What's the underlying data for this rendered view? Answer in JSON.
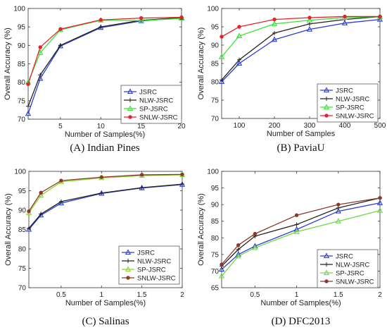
{
  "chart_data": [
    {
      "type": "line",
      "caption": "(A) Indian Pines",
      "xlabel": "Number of Samples(%)",
      "ylabel": "Overall Accuracy (%)",
      "xlim": [
        1,
        20
      ],
      "ylim": [
        70,
        100
      ],
      "xticks": [
        5,
        10,
        15,
        20
      ],
      "yticks": [
        70,
        75,
        80,
        85,
        90,
        95,
        100
      ],
      "x": [
        1,
        2.5,
        5,
        10,
        15,
        20
      ],
      "legend_position": "middle-right",
      "series": [
        {
          "name": "JSRC",
          "color": "#2b3fd4",
          "marker": "triangle",
          "values": [
            71.5,
            81.0,
            89.8,
            94.8,
            96.6,
            97.5
          ]
        },
        {
          "name": "NLW-JSRC",
          "color": "#222222",
          "marker": "plus",
          "values": [
            73.5,
            82.0,
            90.0,
            95.0,
            96.8,
            97.5
          ]
        },
        {
          "name": "SP-JSRC",
          "color": "#33e633",
          "marker": "triangle",
          "values": [
            80.0,
            88.0,
            94.2,
            96.8,
            96.7,
            97.3
          ]
        },
        {
          "name": "SNLW-JSRC",
          "color": "#e8202a",
          "marker": "dot",
          "values": [
            79.5,
            89.5,
            94.4,
            96.9,
            97.4,
            97.6
          ]
        }
      ]
    },
    {
      "type": "line",
      "caption": "(B) PaviaU",
      "xlabel": "Number of Samples",
      "ylabel": "Overall Accuracy (%)",
      "xlim": [
        50,
        500
      ],
      "ylim": [
        70,
        100
      ],
      "xticks": [
        100,
        200,
        300,
        400,
        500
      ],
      "yticks": [
        70,
        75,
        80,
        85,
        90,
        95,
        100
      ],
      "x": [
        50,
        100,
        200,
        300,
        400,
        500
      ],
      "legend_position": "bottom-right",
      "series": [
        {
          "name": "JSRC",
          "color": "#2b3fd4",
          "marker": "triangle",
          "values": [
            80.0,
            85.0,
            91.5,
            94.3,
            96.0,
            97.0
          ]
        },
        {
          "name": "NLW-JSRC",
          "color": "#222222",
          "marker": "plus",
          "values": [
            80.5,
            86.0,
            93.3,
            95.8,
            97.0,
            97.8
          ]
        },
        {
          "name": "SP-JSRC",
          "color": "#33e633",
          "marker": "triangle",
          "values": [
            86.8,
            92.5,
            95.8,
            96.8,
            97.5,
            97.8
          ]
        },
        {
          "name": "SNLW-JSRC",
          "color": "#e8202a",
          "marker": "dot",
          "values": [
            92.3,
            95.0,
            97.0,
            97.5,
            97.8,
            97.8
          ]
        }
      ]
    },
    {
      "type": "line",
      "caption": "(C) Salinas",
      "xlabel": "Number of Samples(%)",
      "ylabel": "Overall Accuracy (%)",
      "xlim": [
        0.1,
        2
      ],
      "ylim": [
        70,
        100
      ],
      "xticks": [
        0.5,
        1,
        1.5,
        2
      ],
      "yticks": [
        70,
        75,
        80,
        85,
        90,
        95,
        100
      ],
      "x": [
        0.1,
        0.25,
        0.5,
        1,
        1.5,
        2
      ],
      "legend_position": "bottom-right",
      "series": [
        {
          "name": "JSRC",
          "color": "#2b3fd4",
          "marker": "triangle",
          "values": [
            85.0,
            88.7,
            91.8,
            94.3,
            95.7,
            96.6
          ]
        },
        {
          "name": "NLW-JSRC",
          "color": "#222222",
          "marker": "plus",
          "values": [
            85.3,
            89.0,
            92.2,
            94.4,
            95.8,
            96.7
          ]
        },
        {
          "name": "SP-JSRC",
          "color": "#8ad62a",
          "marker": "triangle",
          "values": [
            89.3,
            93.8,
            97.3,
            98.3,
            98.9,
            99.1
          ]
        },
        {
          "name": "SNLW-JSRC",
          "color": "#8b3a2a",
          "marker": "dot",
          "values": [
            89.7,
            94.5,
            97.6,
            98.5,
            99.1,
            99.2
          ]
        }
      ]
    },
    {
      "type": "line",
      "caption": "(D) DFC2013",
      "xlabel": "Number of Samples(%)",
      "ylabel": "Overall Accuracy (%)",
      "xlim": [
        0.1,
        2
      ],
      "ylim": [
        65,
        100
      ],
      "xticks": [
        0.5,
        1,
        1.5,
        2
      ],
      "yticks": [
        65,
        70,
        75,
        80,
        85,
        90,
        95,
        100
      ],
      "x": [
        0.1,
        0.3,
        0.5,
        1,
        1.5,
        2
      ],
      "legend_position": "bottom-right",
      "series": [
        {
          "name": "JSRC",
          "color": "#2b3fd4",
          "marker": "triangle",
          "values": [
            70.5,
            75.0,
            77.5,
            82.5,
            88.0,
            90.5
          ]
        },
        {
          "name": "NLW-JSRC",
          "color": "#222222",
          "marker": "plus",
          "values": [
            71.5,
            76.5,
            80.5,
            84.0,
            89.0,
            92.0
          ]
        },
        {
          "name": "SP-JSRC",
          "color": "#6fd84a",
          "marker": "triangle",
          "values": [
            68.5,
            74.5,
            77.0,
            81.8,
            85.0,
            88.2
          ]
        },
        {
          "name": "SNLW-JSRC",
          "color": "#8b3a2a",
          "marker": "dot",
          "values": [
            72.0,
            77.8,
            81.2,
            86.8,
            90.0,
            92.0
          ]
        }
      ]
    }
  ]
}
